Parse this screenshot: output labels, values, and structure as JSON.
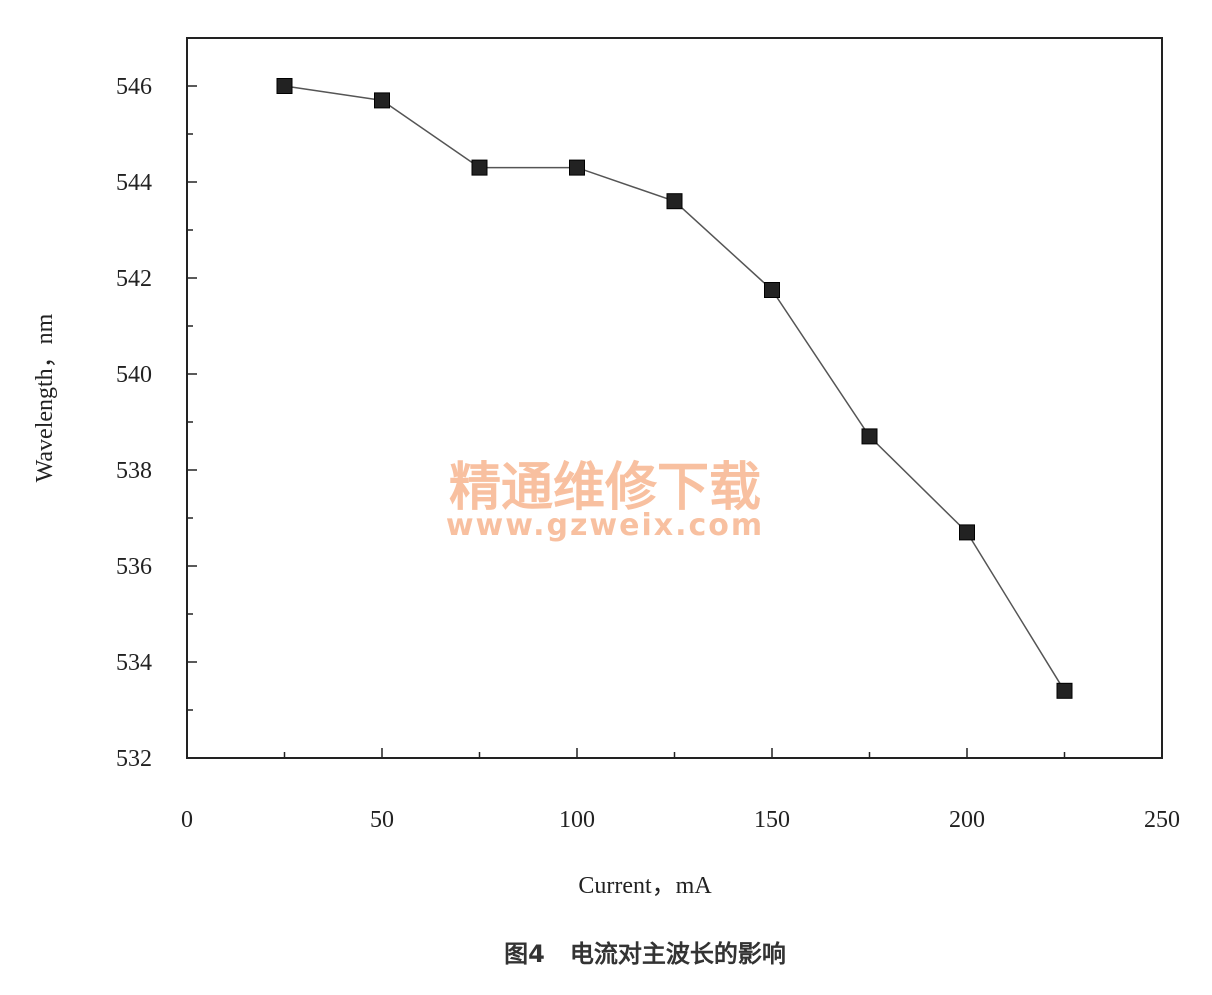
{
  "chart_data": {
    "type": "line",
    "x": [
      25,
      50,
      75,
      100,
      125,
      150,
      175,
      200,
      225
    ],
    "series": [
      {
        "values": [
          546.0,
          545.7,
          544.3,
          544.3,
          543.6,
          541.75,
          538.7,
          536.7,
          533.4
        ],
        "color": "#222222",
        "marker": "square"
      }
    ],
    "xlabel": "Current，mA",
    "ylabel": "Wavelength，nm",
    "xlim": [
      0,
      250
    ],
    "ylim": [
      532,
      547
    ],
    "xticks": [
      0,
      50,
      100,
      150,
      200,
      250
    ],
    "yticks": [
      532,
      534,
      536,
      538,
      540,
      542,
      544,
      546
    ],
    "grid": false,
    "legend": "none"
  },
  "watermark": {
    "text": "精通维修下载",
    "url": "www.gzweix.com",
    "color": "#f7b690"
  },
  "caption": "图4   电流对主波长的影响"
}
